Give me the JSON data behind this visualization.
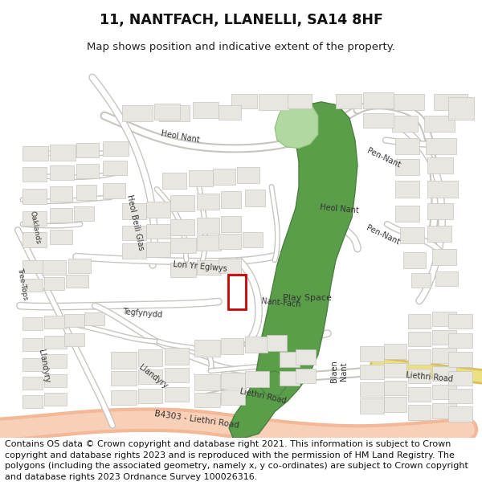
{
  "title": "11, NANTFACH, LLANELLI, SA14 8HF",
  "subtitle": "Map shows position and indicative extent of the property.",
  "footer": "Contains OS data © Crown copyright and database right 2021. This information is subject to Crown copyright and database rights 2023 and is reproduced with the permission of HM Land Registry. The polygons (including the associated geometry, namely x, y co-ordinates) are subject to Crown copyright and database rights 2023 Ordnance Survey 100026316.",
  "map_bg": "#f0efeb",
  "footer_bg": "#ffffff",
  "road_outer": "#c8c5bf",
  "road_inner": "#ffffff",
  "build_fill": "#e8e6e0",
  "build_edge": "#c8c5bf",
  "green_main": "#5a9e4a",
  "green_dark": "#4a8040",
  "green_light": "#b0d8a0",
  "b4303_outer": "#f2b898",
  "b4303_inner": "#f8d0b8",
  "yellow_outer": "#d8c060",
  "yellow_inner": "#ece080",
  "plot_edge": "#cc0000",
  "label_color": "#333333",
  "title_size": 12.5,
  "subtitle_size": 9.5,
  "footer_size": 8.0,
  "label_size": 7.0
}
